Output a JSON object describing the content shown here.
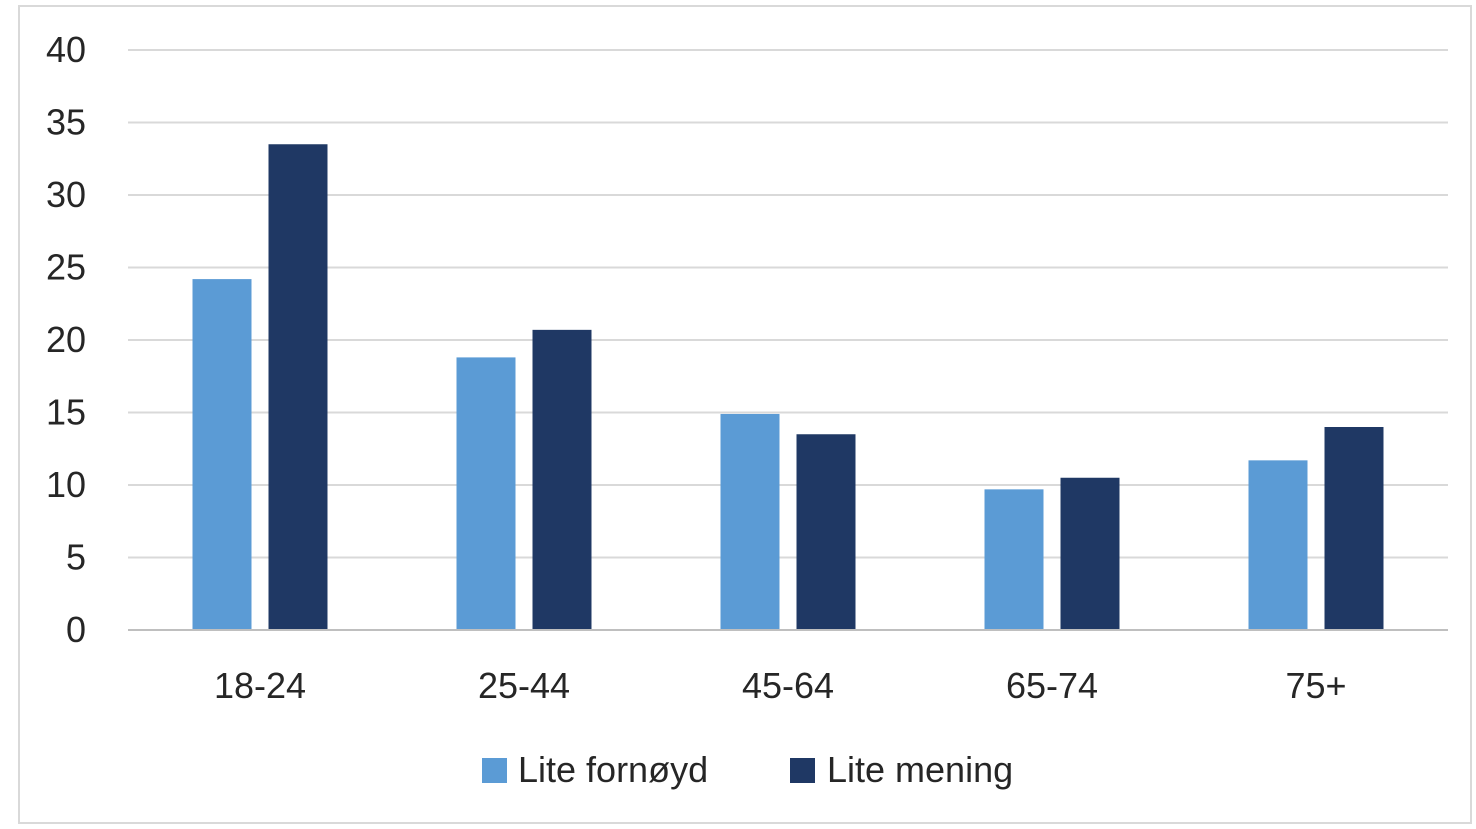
{
  "chart_data": {
    "type": "bar",
    "title": "",
    "xlabel": "",
    "ylabel": "",
    "categories": [
      "18-24",
      "25-44",
      "45-64",
      "65-74",
      "75+"
    ],
    "series": [
      {
        "name": "Lite fornøyd",
        "color": "#5b9bd5",
        "values": [
          24.2,
          18.8,
          14.9,
          9.7,
          11.7
        ]
      },
      {
        "name": "Lite mening",
        "color": "#1f3864",
        "values": [
          33.5,
          20.7,
          13.5,
          10.5,
          14.0
        ]
      }
    ],
    "ylim": [
      0,
      40
    ],
    "yticks": [
      0,
      5,
      10,
      15,
      20,
      25,
      30,
      35,
      40
    ],
    "grid": true,
    "legend_position": "bottom",
    "colors": {
      "gridline": "#d9d9d9",
      "axis": "#bfbfbf",
      "text": "#262626"
    }
  }
}
